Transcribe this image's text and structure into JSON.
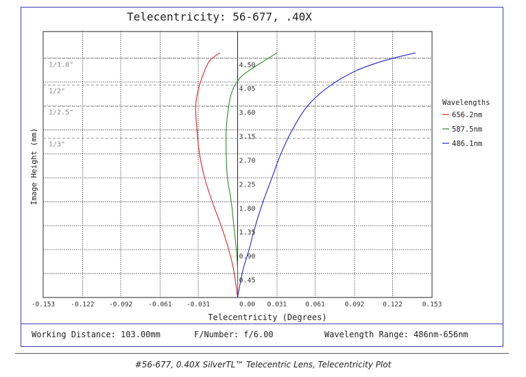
{
  "chart_data": {
    "type": "line",
    "title": "Telecentricity: 56-677, .40X",
    "xlabel": "Telecentricity (Degrees)",
    "ylabel": "Image Height (mm)",
    "xlim": [
      -0.153,
      0.153
    ],
    "ylim": [
      0,
      5.0
    ],
    "x_ticks": [
      "-0.153",
      "-0.122",
      "-0.092",
      "-0.061",
      "-0.031",
      "0.00",
      "0.031",
      "0.061",
      "0.092",
      "0.122",
      "0.153"
    ],
    "y_ticks": [
      "0.45",
      "0.90",
      "1.35",
      "1.80",
      "2.25",
      "2.70",
      "3.15",
      "3.60",
      "4.05",
      "4.50"
    ],
    "grid": true,
    "legend_title": "Wavelengths",
    "legend_position": "right",
    "sensor_lines": [
      {
        "label": "1/1.8\"",
        "y": 4.5
      },
      {
        "label": "1/2\"",
        "y": 4.0
      },
      {
        "label": "1/2.5\"",
        "y": 3.6
      },
      {
        "label": "1/3\"",
        "y": 3.0
      }
    ],
    "series": [
      {
        "name": "656.2nm",
        "color": "#e02020",
        "x": [
          0,
          -0.003,
          -0.007,
          -0.013,
          -0.02,
          -0.026,
          -0.03,
          -0.032,
          -0.033,
          -0.031,
          -0.027,
          -0.022,
          -0.014
        ],
        "y": [
          0,
          0.5,
          0.9,
          1.35,
          1.8,
          2.25,
          2.7,
          3.15,
          3.6,
          3.9,
          4.2,
          4.45,
          4.6
        ]
      },
      {
        "name": "587.5nm",
        "color": "#2a8a2a",
        "x": [
          0,
          0.0,
          -0.001,
          -0.003,
          -0.005,
          -0.008,
          -0.009,
          -0.009,
          -0.007,
          -0.004,
          0.001,
          0.008,
          0.031
        ],
        "y": [
          0,
          0.5,
          0.9,
          1.35,
          1.8,
          2.25,
          2.7,
          3.15,
          3.6,
          3.9,
          4.1,
          4.25,
          4.6
        ]
      },
      {
        "name": "486.1nm",
        "color": "#2020d0",
        "x": [
          0,
          0.004,
          0.009,
          0.014,
          0.02,
          0.027,
          0.034,
          0.043,
          0.055,
          0.071,
          0.092,
          0.115,
          0.14
        ],
        "y": [
          0,
          0.5,
          0.9,
          1.35,
          1.8,
          2.25,
          2.7,
          3.15,
          3.6,
          3.95,
          4.25,
          4.45,
          4.6
        ]
      }
    ]
  },
  "footer": {
    "working_distance": "Working Distance: 103.00mm",
    "f_number": "F/Number: f/6.00",
    "wavelength_range": "Wavelength Range: 486nm-656nm"
  },
  "caption": "#56-677, 0.40X SilverTL™ Telecentric Lens, Telecentricity Plot"
}
